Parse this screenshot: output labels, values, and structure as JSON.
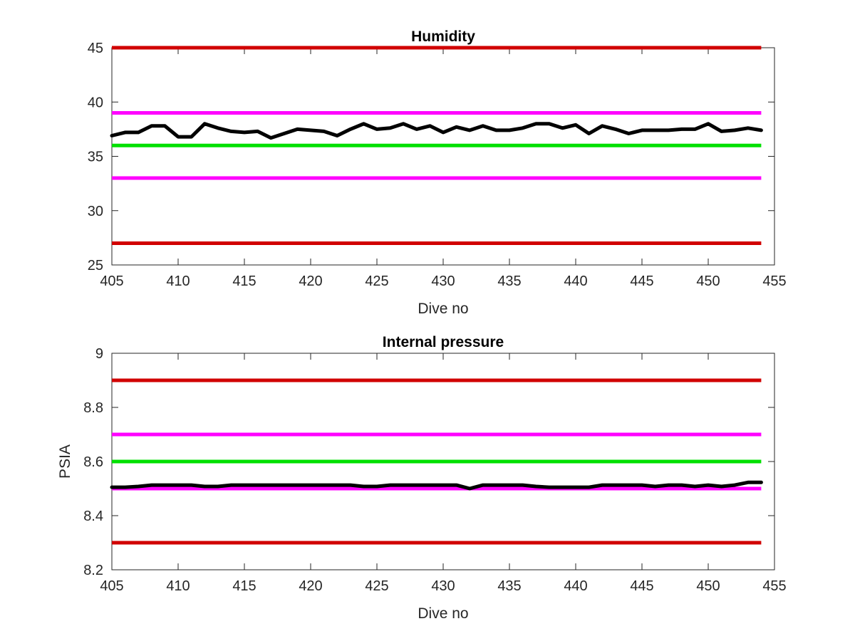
{
  "chart_data": [
    {
      "type": "line",
      "title": "Humidity",
      "xlabel": "Dive no",
      "ylabel": "",
      "xlim": [
        405,
        455
      ],
      "ylim": [
        25,
        45
      ],
      "xticks": [
        405,
        410,
        415,
        420,
        425,
        430,
        435,
        440,
        445,
        450,
        455
      ],
      "yticks": [
        25,
        30,
        35,
        40,
        45
      ],
      "ytick_labels": [
        "25",
        "30",
        "35",
        "40",
        "45"
      ],
      "grid": false,
      "reference_lines": [
        {
          "y": 45,
          "color": "#d10000"
        },
        {
          "y": 39,
          "color": "#ff00ff"
        },
        {
          "y": 36,
          "color": "#00e000"
        },
        {
          "y": 33,
          "color": "#ff00ff"
        },
        {
          "y": 27,
          "color": "#d10000"
        }
      ],
      "series": [
        {
          "color": "#000000",
          "x": [
            405,
            406,
            407,
            408,
            409,
            410,
            411,
            412,
            413,
            414,
            415,
            416,
            417,
            418,
            419,
            420,
            421,
            422,
            423,
            424,
            425,
            426,
            427,
            428,
            429,
            430,
            431,
            432,
            433,
            434,
            435,
            436,
            437,
            438,
            439,
            440,
            441,
            442,
            443,
            444,
            445,
            446,
            447,
            448,
            449,
            450,
            451,
            452,
            453,
            454
          ],
          "values": [
            36.9,
            37.2,
            37.2,
            37.8,
            37.8,
            36.8,
            36.8,
            38.0,
            37.6,
            37.3,
            37.2,
            37.3,
            36.7,
            37.1,
            37.5,
            37.4,
            37.3,
            36.9,
            37.5,
            38.0,
            37.5,
            37.6,
            38.0,
            37.5,
            37.8,
            37.2,
            37.7,
            37.4,
            37.8,
            37.4,
            37.4,
            37.6,
            38.0,
            38.0,
            37.6,
            37.9,
            37.1,
            37.8,
            37.5,
            37.1,
            37.4,
            37.4,
            37.4,
            37.5,
            37.5,
            38.0,
            37.3,
            37.4,
            37.6,
            37.4
          ]
        }
      ]
    },
    {
      "type": "line",
      "title": "Internal pressure",
      "xlabel": "Dive no",
      "ylabel": "PSIA",
      "xlim": [
        405,
        455
      ],
      "ylim": [
        8.2,
        9.0
      ],
      "xticks": [
        405,
        410,
        415,
        420,
        425,
        430,
        435,
        440,
        445,
        450,
        455
      ],
      "yticks": [
        8.2,
        8.4,
        8.6,
        8.8,
        9.0
      ],
      "ytick_labels": [
        "8.2",
        "8.4",
        "8.6",
        "8.8",
        "9"
      ],
      "grid": false,
      "reference_lines": [
        {
          "y": 8.9,
          "color": "#d10000"
        },
        {
          "y": 8.7,
          "color": "#ff00ff"
        },
        {
          "y": 8.6,
          "color": "#00e000"
        },
        {
          "y": 8.5,
          "color": "#ff00ff"
        },
        {
          "y": 8.3,
          "color": "#d10000"
        }
      ],
      "series": [
        {
          "color": "#000000",
          "x": [
            405,
            406,
            407,
            408,
            409,
            410,
            411,
            412,
            413,
            414,
            415,
            416,
            417,
            418,
            419,
            420,
            421,
            422,
            423,
            424,
            425,
            426,
            427,
            428,
            429,
            430,
            431,
            432,
            433,
            434,
            435,
            436,
            437,
            438,
            439,
            440,
            441,
            442,
            443,
            444,
            445,
            446,
            447,
            448,
            449,
            450,
            451,
            452,
            453,
            454
          ],
          "values": [
            8.505,
            8.505,
            8.508,
            8.513,
            8.513,
            8.513,
            8.513,
            8.508,
            8.508,
            8.513,
            8.513,
            8.513,
            8.513,
            8.513,
            8.513,
            8.513,
            8.513,
            8.513,
            8.513,
            8.508,
            8.508,
            8.513,
            8.513,
            8.513,
            8.513,
            8.513,
            8.513,
            8.5,
            8.513,
            8.513,
            8.513,
            8.513,
            8.508,
            8.505,
            8.505,
            8.505,
            8.505,
            8.513,
            8.513,
            8.513,
            8.513,
            8.508,
            8.513,
            8.513,
            8.508,
            8.513,
            8.508,
            8.513,
            8.523,
            8.523
          ]
        }
      ]
    }
  ]
}
